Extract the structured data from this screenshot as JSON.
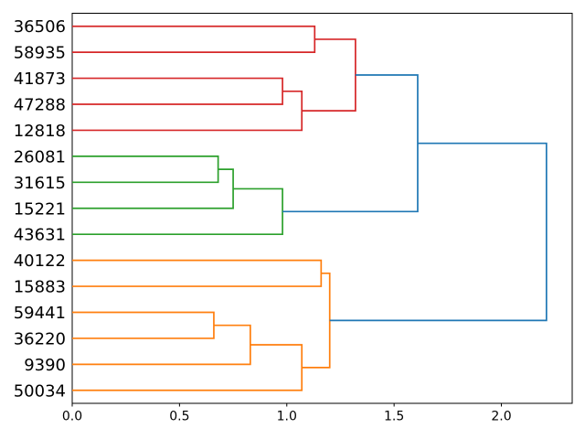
{
  "chart_data": {
    "type": "dendrogram",
    "orientation": "right",
    "title": "",
    "xlabel": "",
    "ylabel": "",
    "grid": false,
    "legend": false,
    "xlim": [
      0,
      2.33
    ],
    "x_ticks": [
      "0.0",
      "0.5",
      "1.0",
      "1.5",
      "2.0"
    ],
    "x_tick_values": [
      0,
      0.5,
      1.0,
      1.5,
      2.0
    ],
    "leaves": [
      "36506",
      "58935",
      "41873",
      "47288",
      "12818",
      "26081",
      "31615",
      "15221",
      "43631",
      "40122",
      "15883",
      "59441",
      "36220",
      "9390",
      "50034"
    ],
    "links": [
      {
        "id": "r1",
        "children": [
          "41873",
          "47288"
        ],
        "height": 0.98,
        "color_key": "red"
      },
      {
        "id": "r2",
        "children": [
          "r1",
          "12818"
        ],
        "height": 1.07,
        "color_key": "red"
      },
      {
        "id": "r3",
        "children": [
          "36506",
          "58935"
        ],
        "height": 1.13,
        "color_key": "red"
      },
      {
        "id": "r4",
        "children": [
          "r3",
          "r2"
        ],
        "height": 1.32,
        "color_key": "red"
      },
      {
        "id": "g1",
        "children": [
          "26081",
          "31615"
        ],
        "height": 0.68,
        "color_key": "green"
      },
      {
        "id": "g2",
        "children": [
          "g1",
          "15221"
        ],
        "height": 0.75,
        "color_key": "green"
      },
      {
        "id": "g3",
        "children": [
          "g2",
          "43631"
        ],
        "height": 0.98,
        "color_key": "green"
      },
      {
        "id": "o1",
        "children": [
          "59441",
          "36220"
        ],
        "height": 0.66,
        "color_key": "orange"
      },
      {
        "id": "o2",
        "children": [
          "o1",
          "9390"
        ],
        "height": 0.83,
        "color_key": "orange"
      },
      {
        "id": "o3",
        "children": [
          "o2",
          "50034"
        ],
        "height": 1.07,
        "color_key": "orange"
      },
      {
        "id": "o4",
        "children": [
          "40122",
          "15883"
        ],
        "height": 1.16,
        "color_key": "orange"
      },
      {
        "id": "o5",
        "children": [
          "o4",
          "o3"
        ],
        "height": 1.2,
        "color_key": "orange"
      },
      {
        "id": "b1",
        "children": [
          "r4",
          "g3"
        ],
        "height": 1.61,
        "color_key": "blue"
      },
      {
        "id": "b2",
        "children": [
          "b1",
          "o5"
        ],
        "height": 2.21,
        "color_key": "blue"
      }
    ],
    "colors": {
      "red": "#d62728",
      "green": "#2ca02c",
      "orange": "#ff7f0e",
      "blue": "#1f77b4",
      "axis": "#000000",
      "background": "#ffffff"
    }
  }
}
